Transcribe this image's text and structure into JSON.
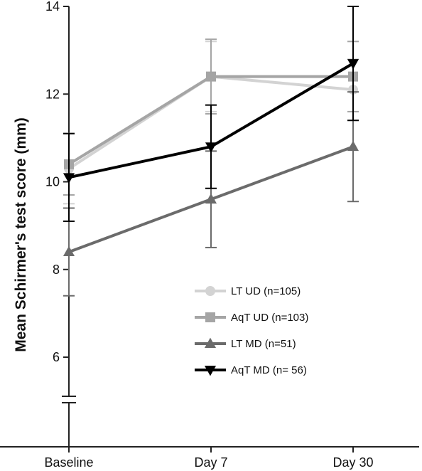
{
  "chart_data": {
    "type": "line",
    "title": "",
    "xlabel": "",
    "ylabel": "Mean Schirmer's test score (mm)",
    "categories": [
      "Baseline",
      "Day 7",
      "Day 30"
    ],
    "ylim": [
      4,
      14
    ],
    "yticks": [
      "6",
      "8",
      "10",
      "12",
      "14"
    ],
    "y_axis_break": [
      4.95,
      5.05
    ],
    "grid": false,
    "legend_position": "lower-right",
    "series": [
      {
        "name": "LT UD (n=105)",
        "marker": "circle",
        "color": "#d3d3d3",
        "values": [
          10.3,
          12.4,
          12.1
        ],
        "error": [
          0.8,
          0.8,
          0.7
        ]
      },
      {
        "name": "AqT UD (n=103)",
        "marker": "square",
        "color": "#a5a5a5",
        "values": [
          10.4,
          12.4,
          12.4
        ],
        "error": [
          0.7,
          0.85,
          0.8
        ]
      },
      {
        "name": "LT MD (n=51)",
        "marker": "triangle-up",
        "color": "#6b6b6b",
        "values": [
          8.4,
          9.6,
          10.8
        ],
        "error": [
          1.0,
          1.1,
          1.25
        ]
      },
      {
        "name": "AqT MD (n= 56)",
        "marker": "triangle-down",
        "color": "#000000",
        "values": [
          10.1,
          10.8,
          12.7
        ],
        "error": [
          1.0,
          0.95,
          1.3
        ]
      }
    ]
  }
}
